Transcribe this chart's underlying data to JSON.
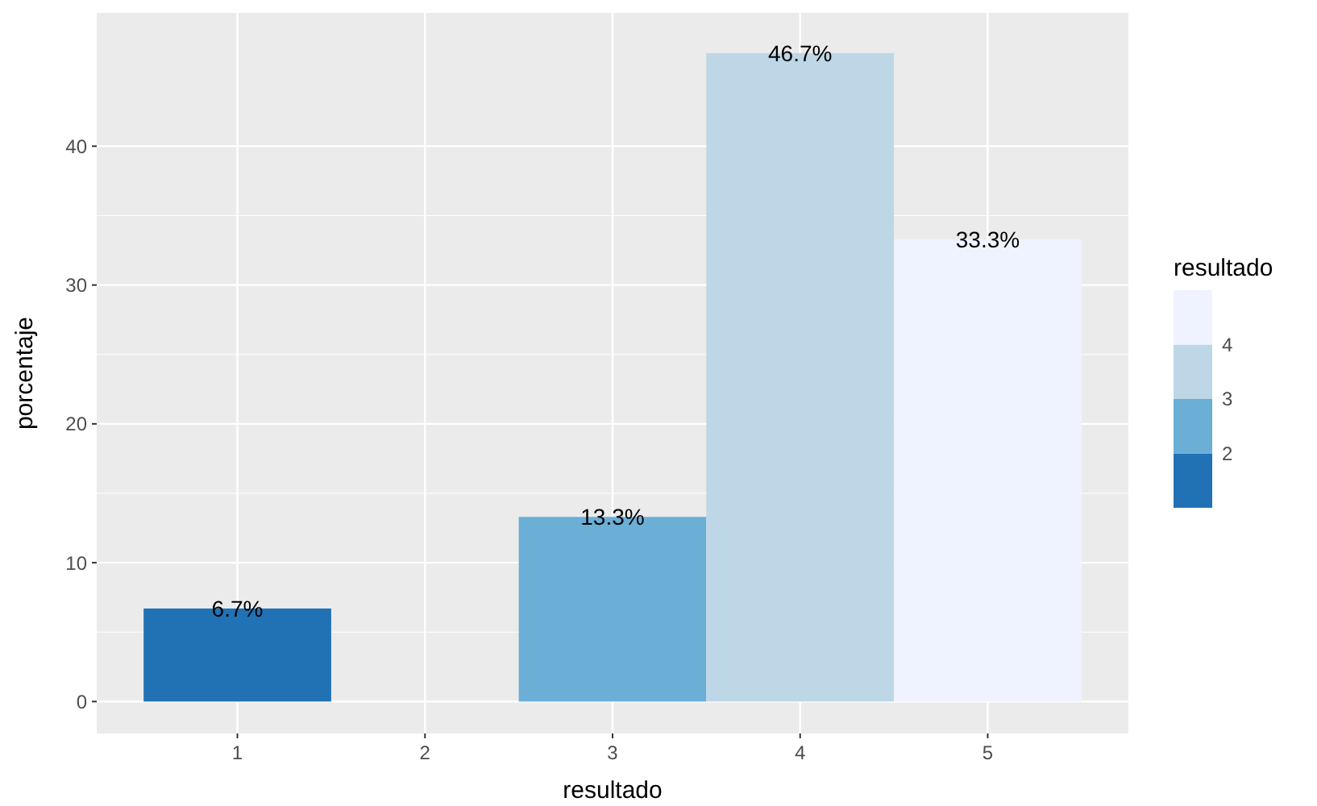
{
  "chart_data": {
    "type": "bar",
    "xlabel": "resultado",
    "ylabel": "porcentaje",
    "categories": [
      "1",
      "2",
      "3",
      "4",
      "5"
    ],
    "values": [
      6.7,
      null,
      13.3,
      46.7,
      33.3
    ],
    "colors": [
      "#2171b5",
      null,
      "#6baed6",
      "#bdd7e7",
      "#eff3ff"
    ],
    "value_labels": [
      "6.7%",
      null,
      "13.3%",
      "46.7%",
      "33.3%"
    ],
    "ylim": [
      -2.3,
      49.6
    ],
    "yticks": [
      0,
      10,
      20,
      30,
      40
    ],
    "grid": true,
    "clabel": "resultado",
    "clim": [
      1,
      5
    ],
    "cticks": [
      2,
      3,
      4
    ]
  }
}
